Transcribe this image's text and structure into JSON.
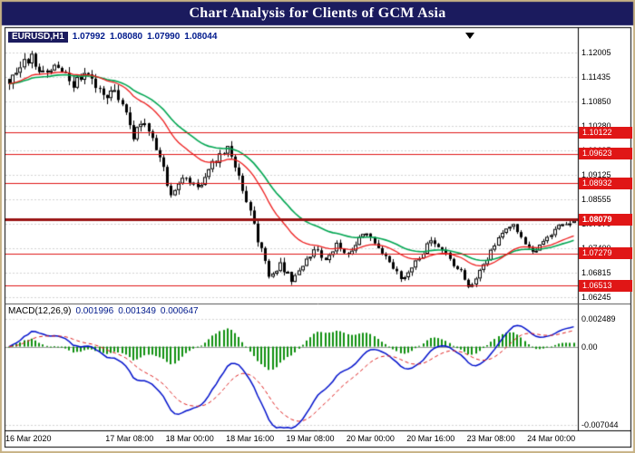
{
  "window": {
    "title": "Chart Analysis for Clients of GCM Asia"
  },
  "symbol_bar": {
    "symbol": "EURUSD,H1",
    "ohlc": [
      "1.07992",
      "1.08080",
      "1.07990",
      "1.08044"
    ]
  },
  "indicator_bar": {
    "label": "MACD(12,26,9)",
    "values": [
      "0.001996",
      "0.001349",
      "0.000647"
    ]
  },
  "chrome": {
    "titlebar-bg": "#1b1b5e",
    "titlebar-text": "#ffffff",
    "outer-border": "#c6b184",
    "chart-bg": "#ffffff",
    "value-text": "#001a8c",
    "tag-bg": "#e01616",
    "tag-text": "#ffffff"
  },
  "chart_data": {
    "type": "candlestick",
    "instrument": "EURUSD",
    "timeframe": "H1",
    "n_candles": 151,
    "price_axis_labels": [
      "1.12005",
      "1.11435",
      "1.10850",
      "1.10280",
      "1.09695",
      "1.09125",
      "1.08555",
      "1.07970",
      "1.07400",
      "1.06815",
      "1.06245"
    ],
    "price_range": [
      1.06245,
      1.12005
    ],
    "time_ticks": [
      {
        "label": "16 Mar 2020",
        "index": 0
      },
      {
        "label": "17 Mar 08:00",
        "index": 32
      },
      {
        "label": "18 Mar 00:00",
        "index": 48
      },
      {
        "label": "18 Mar 16:00",
        "index": 64
      },
      {
        "label": "19 Mar 08:00",
        "index": 80
      },
      {
        "label": "20 Mar 00:00",
        "index": 96
      },
      {
        "label": "20 Mar 16:00",
        "index": 112
      },
      {
        "label": "23 Mar 08:00",
        "index": 128
      },
      {
        "label": "24 Mar 00:00",
        "index": 144
      }
    ],
    "last_candle": {
      "open": 1.07992,
      "high": 1.0808,
      "low": 1.0799,
      "close": 1.08044
    },
    "close_anchors": [
      [
        0,
        1.1135
      ],
      [
        3,
        1.1175
      ],
      [
        6,
        1.119
      ],
      [
        9,
        1.115
      ],
      [
        13,
        1.1172
      ],
      [
        17,
        1.1128
      ],
      [
        21,
        1.115
      ],
      [
        25,
        1.1095
      ],
      [
        28,
        1.1118
      ],
      [
        31,
        1.1058
      ],
      [
        33,
        1.1005
      ],
      [
        35,
        1.1042
      ],
      [
        37,
        1.1018
      ],
      [
        40,
        1.0958
      ],
      [
        43,
        1.0862
      ],
      [
        45,
        1.0888
      ],
      [
        47,
        1.0908
      ],
      [
        50,
        1.0878
      ],
      [
        53,
        1.0928
      ],
      [
        56,
        1.0958
      ],
      [
        58,
        1.0975
      ],
      [
        60,
        1.093
      ],
      [
        63,
        1.085
      ],
      [
        66,
        1.0762
      ],
      [
        69,
        1.0682
      ],
      [
        72,
        1.0702
      ],
      [
        75,
        1.0665
      ],
      [
        78,
        1.07
      ],
      [
        81,
        1.0738
      ],
      [
        84,
        1.0712
      ],
      [
        87,
        1.0748
      ],
      [
        90,
        1.0722
      ],
      [
        93,
        1.0768
      ],
      [
        95,
        1.0778
      ],
      [
        98,
        1.0744
      ],
      [
        101,
        1.0712
      ],
      [
        104,
        1.0668
      ],
      [
        107,
        1.0695
      ],
      [
        110,
        1.0732
      ],
      [
        112,
        1.0762
      ],
      [
        115,
        1.0738
      ],
      [
        118,
        1.0702
      ],
      [
        120,
        1.0688
      ],
      [
        122,
        1.0645
      ],
      [
        124,
        1.0668
      ],
      [
        126,
        1.07
      ],
      [
        128,
        1.0732
      ],
      [
        131,
        1.0775
      ],
      [
        134,
        1.0798
      ],
      [
        136,
        1.0764
      ],
      [
        139,
        1.0728
      ],
      [
        142,
        1.0758
      ],
      [
        144,
        1.0775
      ],
      [
        147,
        1.0798
      ],
      [
        150,
        1.08044
      ]
    ],
    "volatility_segments": [
      [
        0,
        0.0017
      ],
      [
        36,
        0.0013
      ],
      [
        58,
        0.0015
      ],
      [
        76,
        0.001
      ],
      [
        118,
        0.0008
      ]
    ],
    "support_resistance": [
      {
        "label": "1.10122",
        "price": 1.10122,
        "emphasis": false
      },
      {
        "label": "1.09623",
        "price": 1.09623,
        "emphasis": false
      },
      {
        "label": "1.08932",
        "price": 1.08932,
        "emphasis": false
      },
      {
        "label": "1.08079",
        "price": 1.08079,
        "emphasis": true
      },
      {
        "label": "1.07279",
        "price": 1.07279,
        "emphasis": false
      },
      {
        "label": "1.06513",
        "price": 1.06513,
        "emphasis": false
      }
    ],
    "moving_averages": [
      {
        "period": 21,
        "method": "ema",
        "color": "#ee1c1c"
      },
      {
        "period": 34,
        "method": "ema",
        "color": "#00a651"
      }
    ],
    "macd": {
      "fast": 12,
      "slow": 26,
      "signal": 9,
      "axis_labels": [
        "0.002489",
        "0.00",
        "-0.007044"
      ],
      "axis_values": [
        0.002489,
        0,
        -0.007044
      ],
      "range": [
        -0.007044,
        0.002489
      ],
      "colors": {
        "macd_line": "#0010cc",
        "signal_line": "#e02020",
        "histogram": "#109010"
      }
    },
    "colors": {
      "grid": "#d4d4d4",
      "bull_body": "#ffffff",
      "bear_body": "#000000",
      "candle_outline": "#000000",
      "sr_line": "#e01616",
      "sr_line_emphasis": "#9a1212"
    }
  }
}
